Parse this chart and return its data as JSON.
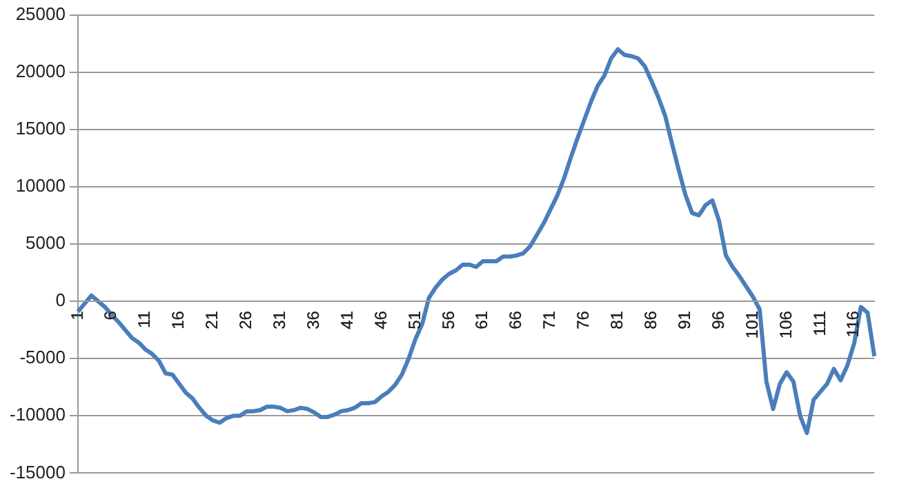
{
  "chart_data": {
    "type": "line",
    "categories": [
      "1",
      null,
      null,
      null,
      null,
      "6",
      null,
      null,
      null,
      null,
      "11",
      null,
      null,
      null,
      null,
      "16",
      null,
      null,
      null,
      null,
      "21",
      null,
      null,
      null,
      null,
      "26",
      null,
      null,
      null,
      null,
      "31",
      null,
      null,
      null,
      null,
      "36",
      null,
      null,
      null,
      null,
      "41",
      null,
      null,
      null,
      null,
      "46",
      null,
      null,
      null,
      null,
      "51",
      null,
      null,
      null,
      null,
      "56",
      null,
      null,
      null,
      null,
      "61",
      null,
      null,
      null,
      null,
      "66",
      null,
      null,
      null,
      null,
      "71",
      null,
      null,
      null,
      null,
      "76",
      null,
      null,
      null,
      null,
      "81",
      null,
      null,
      null,
      null,
      "86",
      null,
      null,
      null,
      null,
      "91",
      null,
      null,
      null,
      null,
      "96",
      null,
      null,
      null,
      null,
      "101",
      null,
      null,
      null,
      null,
      "106",
      null,
      null,
      null,
      null,
      "111",
      null,
      null,
      null,
      null,
      "116",
      null,
      null,
      null
    ],
    "series": [
      {
        "color": "#4a7ebb",
        "values": [
          -900,
          -200,
          500,
          0,
          -500,
          -1200,
          -1800,
          -2500,
          -3200,
          -3600,
          -4200,
          -4600,
          -5200,
          -6300,
          -6400,
          -7200,
          -8000,
          -8500,
          -9300,
          -10000,
          -10400,
          -10600,
          -10200,
          -10000,
          -10000,
          -9600,
          -9600,
          -9500,
          -9200,
          -9200,
          -9300,
          -9600,
          -9500,
          -9300,
          -9400,
          -9700,
          -10100,
          -10100,
          -9900,
          -9600,
          -9500,
          -9300,
          -8900,
          -8900,
          -8800,
          -8300,
          -7900,
          -7300,
          -6400,
          -5000,
          -3300,
          -2000,
          300,
          1200,
          1900,
          2400,
          2700,
          3200,
          3200,
          3000,
          3500,
          3500,
          3500,
          3900,
          3900,
          4000,
          4200,
          4800,
          5800,
          6800,
          8000,
          9200,
          10700,
          12500,
          14200,
          15800,
          17400,
          18800,
          19700,
          21200,
          22000,
          21500,
          21400,
          21200,
          20500,
          19200,
          17800,
          16200,
          13800,
          11500,
          9300,
          7700,
          7500,
          8400,
          8800,
          7000,
          4000,
          3000,
          2200,
          1300,
          400,
          -700,
          -7000,
          -9400,
          -7200,
          -6200,
          -7000,
          -10000,
          -11500,
          -8600,
          -7900,
          -7200,
          -5900,
          -6900,
          -5600,
          -3700,
          -500,
          -1000,
          -4800
        ]
      }
    ],
    "ylim": [
      -15000,
      25000
    ],
    "yticks": [
      -15000,
      -10000,
      -5000,
      0,
      5000,
      10000,
      15000,
      20000,
      25000
    ],
    "grid": "y",
    "legend": false,
    "marker": "none",
    "line_style": "solid"
  }
}
